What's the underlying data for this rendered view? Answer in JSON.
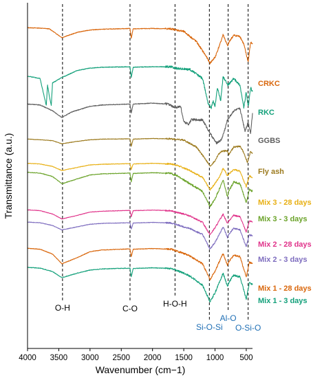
{
  "chart_data": {
    "type": "line",
    "title": "",
    "xlabel": "Wavenumber (cm−1)",
    "ylabel": "Transmittance (a.u.)",
    "xlim": [
      4000,
      400
    ],
    "x_reversed": true,
    "x_ticks": [
      4000,
      3500,
      3000,
      2500,
      2000,
      1500,
      1000,
      500
    ],
    "series": [
      {
        "name": "CRKC",
        "color": "#D9660B",
        "offset": 0.82,
        "amp": 0.11,
        "points": [
          [
            4000,
            0.98
          ],
          [
            3800,
            0.97
          ],
          [
            3650,
            0.95
          ],
          [
            3450,
            0.72
          ],
          [
            3200,
            0.86
          ],
          [
            3000,
            0.92
          ],
          [
            2800,
            0.94
          ],
          [
            2360,
            0.96
          ],
          [
            2340,
            0.7
          ],
          [
            2310,
            0.95
          ],
          [
            2000,
            0.96
          ],
          [
            1700,
            0.95
          ],
          [
            1500,
            0.88
          ],
          [
            1300,
            0.62
          ],
          [
            1150,
            0.25
          ],
          [
            1080,
            0.05
          ],
          [
            1000,
            0.2
          ],
          [
            920,
            0.55
          ],
          [
            870,
            0.8
          ],
          [
            800,
            0.5
          ],
          [
            760,
            0.65
          ],
          [
            700,
            0.78
          ],
          [
            600,
            0.75
          ],
          [
            540,
            0.55
          ],
          [
            470,
            0.08
          ],
          [
            430,
            0.6
          ],
          [
            400,
            0.55
          ]
        ]
      },
      {
        "name": "RKC",
        "color": "#12A07A",
        "offset": 0.69,
        "amp": 0.13,
        "points": [
          [
            4000,
            0.75
          ],
          [
            3800,
            0.7
          ],
          [
            3700,
            0.1
          ],
          [
            3680,
            0.55
          ],
          [
            3650,
            0.3
          ],
          [
            3620,
            0.1
          ],
          [
            3600,
            0.6
          ],
          [
            3450,
            0.72
          ],
          [
            3200,
            0.88
          ],
          [
            3000,
            0.93
          ],
          [
            2800,
            0.95
          ],
          [
            2360,
            0.96
          ],
          [
            2340,
            0.72
          ],
          [
            2310,
            0.95
          ],
          [
            2000,
            0.96
          ],
          [
            1700,
            0.96
          ],
          [
            1600,
            0.92
          ],
          [
            1400,
            0.9
          ],
          [
            1200,
            0.7
          ],
          [
            1110,
            0.15
          ],
          [
            1060,
            0.05
          ],
          [
            1030,
            0.2
          ],
          [
            1000,
            0.08
          ],
          [
            960,
            0.5
          ],
          [
            910,
            0.2
          ],
          [
            870,
            0.75
          ],
          [
            800,
            0.55
          ],
          [
            760,
            0.6
          ],
          [
            700,
            0.7
          ],
          [
            600,
            0.55
          ],
          [
            540,
            0.05
          ],
          [
            500,
            0.4
          ],
          [
            470,
            0.05
          ],
          [
            430,
            0.5
          ],
          [
            400,
            0.4
          ]
        ]
      },
      {
        "name": "GGBS",
        "color": "#5E5E5E",
        "offset": 0.59,
        "amp": 0.13,
        "points": [
          [
            4000,
            0.9
          ],
          [
            3800,
            0.88
          ],
          [
            3600,
            0.75
          ],
          [
            3450,
            0.6
          ],
          [
            3300,
            0.72
          ],
          [
            3000,
            0.85
          ],
          [
            2800,
            0.88
          ],
          [
            2360,
            0.9
          ],
          [
            2340,
            0.7
          ],
          [
            2310,
            0.9
          ],
          [
            2000,
            0.92
          ],
          [
            1750,
            0.9
          ],
          [
            1650,
            0.82
          ],
          [
            1550,
            0.85
          ],
          [
            1500,
            0.5
          ],
          [
            1420,
            0.45
          ],
          [
            1380,
            0.55
          ],
          [
            1200,
            0.55
          ],
          [
            1100,
            0.3
          ],
          [
            980,
            0.03
          ],
          [
            900,
            0.1
          ],
          [
            850,
            0.3
          ],
          [
            800,
            0.55
          ],
          [
            700,
            0.75
          ],
          [
            600,
            0.8
          ],
          [
            520,
            0.3
          ],
          [
            470,
            0.5
          ],
          [
            430,
            0.25
          ],
          [
            400,
            0.7
          ]
        ]
      },
      {
        "name": "Fly ash",
        "color": "#9C7A1E",
        "offset": 0.52,
        "amp": 0.09,
        "points": [
          [
            4000,
            0.95
          ],
          [
            3800,
            0.93
          ],
          [
            3600,
            0.9
          ],
          [
            3450,
            0.8
          ],
          [
            3200,
            0.88
          ],
          [
            3000,
            0.93
          ],
          [
            2800,
            0.95
          ],
          [
            2360,
            0.96
          ],
          [
            2340,
            0.72
          ],
          [
            2310,
            0.95
          ],
          [
            2000,
            0.97
          ],
          [
            1700,
            0.96
          ],
          [
            1500,
            0.92
          ],
          [
            1300,
            0.7
          ],
          [
            1150,
            0.3
          ],
          [
            1080,
            0.08
          ],
          [
            1000,
            0.25
          ],
          [
            950,
            0.45
          ],
          [
            900,
            0.55
          ],
          [
            800,
            0.58
          ],
          [
            780,
            0.45
          ],
          [
            700,
            0.7
          ],
          [
            600,
            0.72
          ],
          [
            560,
            0.6
          ],
          [
            480,
            0.2
          ],
          [
            430,
            0.55
          ],
          [
            400,
            0.5
          ]
        ]
      },
      {
        "name": "Mix 3 - 28 days",
        "color": "#E8B014",
        "offset": 0.45,
        "amp": 0.09,
        "points": [
          [
            4000,
            0.95
          ],
          [
            3800,
            0.93
          ],
          [
            3600,
            0.85
          ],
          [
            3450,
            0.72
          ],
          [
            3200,
            0.82
          ],
          [
            3000,
            0.9
          ],
          [
            2800,
            0.92
          ],
          [
            2360,
            0.94
          ],
          [
            2340,
            0.75
          ],
          [
            2310,
            0.93
          ],
          [
            2000,
            0.95
          ],
          [
            1700,
            0.93
          ],
          [
            1600,
            0.88
          ],
          [
            1500,
            0.8
          ],
          [
            1400,
            0.72
          ],
          [
            1200,
            0.5
          ],
          [
            1080,
            0.1
          ],
          [
            1000,
            0.3
          ],
          [
            920,
            0.55
          ],
          [
            870,
            0.8
          ],
          [
            800,
            0.55
          ],
          [
            780,
            0.6
          ],
          [
            700,
            0.75
          ],
          [
            600,
            0.7
          ],
          [
            500,
            0.2
          ],
          [
            450,
            0.55
          ],
          [
            400,
            0.5
          ]
        ]
      },
      {
        "name": "Mix 3 - 3 days",
        "color": "#6BA32A",
        "offset": 0.405,
        "amp": 0.11,
        "points": [
          [
            4000,
            0.95
          ],
          [
            3800,
            0.93
          ],
          [
            3600,
            0.84
          ],
          [
            3450,
            0.65
          ],
          [
            3200,
            0.78
          ],
          [
            3000,
            0.88
          ],
          [
            2800,
            0.91
          ],
          [
            2360,
            0.93
          ],
          [
            2340,
            0.7
          ],
          [
            2310,
            0.92
          ],
          [
            2000,
            0.94
          ],
          [
            1700,
            0.92
          ],
          [
            1600,
            0.85
          ],
          [
            1500,
            0.75
          ],
          [
            1400,
            0.65
          ],
          [
            1200,
            0.45
          ],
          [
            1080,
            0.05
          ],
          [
            1000,
            0.25
          ],
          [
            920,
            0.55
          ],
          [
            870,
            0.75
          ],
          [
            800,
            0.3
          ],
          [
            780,
            0.45
          ],
          [
            700,
            0.7
          ],
          [
            600,
            0.65
          ],
          [
            500,
            0.15
          ],
          [
            450,
            0.5
          ],
          [
            400,
            0.45
          ]
        ]
      },
      {
        "name": "Mix 2 - 28 days",
        "color": "#E0338A",
        "offset": 0.325,
        "amp": 0.08,
        "points": [
          [
            4000,
            0.95
          ],
          [
            3800,
            0.92
          ],
          [
            3600,
            0.8
          ],
          [
            3450,
            0.62
          ],
          [
            3200,
            0.75
          ],
          [
            3000,
            0.87
          ],
          [
            2800,
            0.9
          ],
          [
            2360,
            0.93
          ],
          [
            2340,
            0.7
          ],
          [
            2310,
            0.92
          ],
          [
            2000,
            0.94
          ],
          [
            1700,
            0.92
          ],
          [
            1600,
            0.85
          ],
          [
            1500,
            0.8
          ],
          [
            1400,
            0.72
          ],
          [
            1200,
            0.5
          ],
          [
            1080,
            0.05
          ],
          [
            1000,
            0.3
          ],
          [
            920,
            0.6
          ],
          [
            870,
            0.8
          ],
          [
            800,
            0.45
          ],
          [
            780,
            0.55
          ],
          [
            700,
            0.75
          ],
          [
            600,
            0.7
          ],
          [
            500,
            0.15
          ],
          [
            450,
            0.55
          ],
          [
            400,
            0.5
          ]
        ]
      },
      {
        "name": "Mix 2 - 3 days",
        "color": "#7E6DBF",
        "offset": 0.28,
        "amp": 0.09,
        "points": [
          [
            4000,
            0.95
          ],
          [
            3800,
            0.93
          ],
          [
            3600,
            0.84
          ],
          [
            3450,
            0.7
          ],
          [
            3200,
            0.8
          ],
          [
            3000,
            0.88
          ],
          [
            2800,
            0.91
          ],
          [
            2360,
            0.93
          ],
          [
            2340,
            0.72
          ],
          [
            2310,
            0.92
          ],
          [
            2000,
            0.94
          ],
          [
            1700,
            0.92
          ],
          [
            1600,
            0.86
          ],
          [
            1500,
            0.8
          ],
          [
            1400,
            0.74
          ],
          [
            1200,
            0.55
          ],
          [
            1080,
            0.08
          ],
          [
            1000,
            0.3
          ],
          [
            920,
            0.6
          ],
          [
            870,
            0.8
          ],
          [
            800,
            0.45
          ],
          [
            780,
            0.55
          ],
          [
            700,
            0.75
          ],
          [
            600,
            0.7
          ],
          [
            500,
            0.15
          ],
          [
            450,
            0.55
          ],
          [
            400,
            0.5
          ]
        ]
      },
      {
        "name": "Mix 1 - 28 days",
        "color": "#D9660B",
        "offset": 0.195,
        "amp": 0.1,
        "points": [
          [
            4000,
            0.95
          ],
          [
            3800,
            0.92
          ],
          [
            3600,
            0.78
          ],
          [
            3450,
            0.5
          ],
          [
            3200,
            0.68
          ],
          [
            3000,
            0.85
          ],
          [
            2800,
            0.9
          ],
          [
            2360,
            0.93
          ],
          [
            2340,
            0.7
          ],
          [
            2310,
            0.92
          ],
          [
            2000,
            0.94
          ],
          [
            1700,
            0.92
          ],
          [
            1600,
            0.86
          ],
          [
            1500,
            0.8
          ],
          [
            1400,
            0.72
          ],
          [
            1200,
            0.5
          ],
          [
            1080,
            0.05
          ],
          [
            1000,
            0.28
          ],
          [
            920,
            0.6
          ],
          [
            870,
            0.8
          ],
          [
            800,
            0.45
          ],
          [
            780,
            0.55
          ],
          [
            700,
            0.75
          ],
          [
            600,
            0.7
          ],
          [
            500,
            0.12
          ],
          [
            450,
            0.55
          ],
          [
            400,
            0.5
          ]
        ]
      },
      {
        "name": "Mix 1 - 3 days",
        "color": "#12A07A",
        "offset": 0.13,
        "amp": 0.11,
        "points": [
          [
            4000,
            0.95
          ],
          [
            3800,
            0.93
          ],
          [
            3600,
            0.84
          ],
          [
            3450,
            0.68
          ],
          [
            3200,
            0.8
          ],
          [
            3000,
            0.88
          ],
          [
            2800,
            0.91
          ],
          [
            2360,
            0.93
          ],
          [
            2340,
            0.7
          ],
          [
            2310,
            0.92
          ],
          [
            2000,
            0.94
          ],
          [
            1700,
            0.92
          ],
          [
            1600,
            0.86
          ],
          [
            1500,
            0.8
          ],
          [
            1400,
            0.72
          ],
          [
            1200,
            0.48
          ],
          [
            1080,
            0.05
          ],
          [
            1000,
            0.28
          ],
          [
            920,
            0.6
          ],
          [
            870,
            0.8
          ],
          [
            800,
            0.45
          ],
          [
            780,
            0.55
          ],
          [
            700,
            0.75
          ],
          [
            600,
            0.7
          ],
          [
            500,
            0.12
          ],
          [
            450,
            0.55
          ],
          [
            400,
            0.5
          ]
        ]
      }
    ],
    "reference_lines": [
      {
        "x": 3440,
        "label": "O-H",
        "label_color": "#000000"
      },
      {
        "x": 2360,
        "label": "C-O",
        "label_color": "#000000"
      },
      {
        "x": 1640,
        "label": "H-O-H",
        "label_color": "#000000"
      },
      {
        "x": 1090,
        "label": "Si-O-Si",
        "label_color": "#1F6FB5"
      },
      {
        "x": 790,
        "label": "Al-O",
        "label_color": "#1F6FB5"
      },
      {
        "x": 470,
        "label": "O-Si-O",
        "label_color": "#1F6FB5"
      }
    ],
    "grid": false,
    "legend": "right, labels beside each curve"
  }
}
